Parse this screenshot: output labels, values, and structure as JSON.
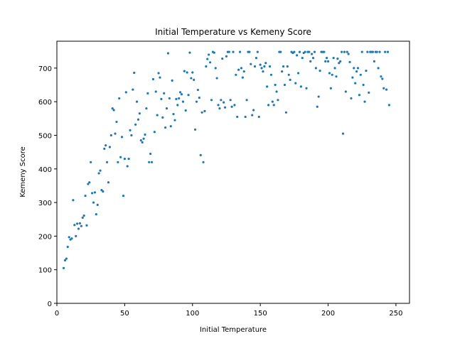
{
  "chart_data": {
    "type": "scatter",
    "title": "Initial Temperature vs Kemeny Score",
    "xlabel": "Initial Temperature",
    "ylabel": "Kemeny Score",
    "xlim": [
      0,
      260
    ],
    "ylim": [
      0,
      780
    ],
    "xticks": [
      0,
      50,
      100,
      150,
      200,
      250
    ],
    "yticks": [
      0,
      100,
      200,
      300,
      400,
      500,
      600,
      700
    ],
    "grid": false,
    "legend": "none",
    "marker_color": "#1f77b4",
    "series": [
      {
        "points": [
          [
            5,
            105
          ],
          [
            6,
            128
          ],
          [
            7,
            133
          ],
          [
            8,
            168
          ],
          [
            9,
            197
          ],
          [
            10,
            190
          ],
          [
            11,
            193
          ],
          [
            12,
            307
          ],
          [
            13,
            233
          ],
          [
            14,
            200
          ],
          [
            15,
            237
          ],
          [
            16,
            222
          ],
          [
            17,
            238
          ],
          [
            18,
            230
          ],
          [
            19,
            255
          ],
          [
            20,
            261
          ],
          [
            21,
            320
          ],
          [
            22,
            232
          ],
          [
            23,
            355
          ],
          [
            24,
            360
          ],
          [
            25,
            420
          ],
          [
            26,
            328
          ],
          [
            27,
            300
          ],
          [
            28,
            330
          ],
          [
            29,
            265
          ],
          [
            30,
            293
          ],
          [
            31,
            387
          ],
          [
            32,
            395
          ],
          [
            33,
            337
          ],
          [
            34,
            333
          ],
          [
            35,
            460
          ],
          [
            36,
            470
          ],
          [
            37,
            420
          ],
          [
            38,
            360
          ],
          [
            39,
            465
          ],
          [
            40,
            500
          ],
          [
            41,
            580
          ],
          [
            42,
            575
          ],
          [
            43,
            505
          ],
          [
            44,
            540
          ],
          [
            45,
            420
          ],
          [
            46,
            610
          ],
          [
            47,
            435
          ],
          [
            48,
            495
          ],
          [
            49,
            320
          ],
          [
            50,
            430
          ],
          [
            51,
            628
          ],
          [
            52,
            408
          ],
          [
            53,
            430
          ],
          [
            54,
            515
          ],
          [
            55,
            500
          ],
          [
            56,
            636
          ],
          [
            57,
            686
          ],
          [
            58,
            532
          ],
          [
            59,
            600
          ],
          [
            60,
            547
          ],
          [
            61,
            565
          ],
          [
            62,
            485
          ],
          [
            63,
            479
          ],
          [
            64,
            490
          ],
          [
            65,
            502
          ],
          [
            66,
            580
          ],
          [
            67,
            625
          ],
          [
            68,
            420
          ],
          [
            69,
            445
          ],
          [
            70,
            420
          ],
          [
            71,
            667
          ],
          [
            72,
            510
          ],
          [
            73,
            630
          ],
          [
            74,
            560
          ],
          [
            75,
            685
          ],
          [
            76,
            672
          ],
          [
            77,
            608
          ],
          [
            78,
            553
          ],
          [
            79,
            625
          ],
          [
            80,
            523
          ],
          [
            81,
            580
          ],
          [
            82,
            744
          ],
          [
            83,
            610
          ],
          [
            84,
            527
          ],
          [
            85,
            663
          ],
          [
            86,
            563
          ],
          [
            87,
            545
          ],
          [
            88,
            608
          ],
          [
            89,
            590
          ],
          [
            90,
            610
          ],
          [
            91,
            628
          ],
          [
            92,
            622
          ],
          [
            93,
            600
          ],
          [
            94,
            691
          ],
          [
            95,
            574
          ],
          [
            96,
            687
          ],
          [
            97,
            620
          ],
          [
            98,
            746
          ],
          [
            99,
            670
          ],
          [
            100,
            687
          ],
          [
            101,
            665
          ],
          [
            102,
            517
          ],
          [
            103,
            600
          ],
          [
            104,
            635
          ],
          [
            105,
            612
          ],
          [
            106,
            441
          ],
          [
            107,
            568
          ],
          [
            108,
            420
          ],
          [
            109,
            572
          ],
          [
            110,
            705
          ],
          [
            111,
            727
          ],
          [
            112,
            740
          ],
          [
            113,
            717
          ],
          [
            114,
            605
          ],
          [
            115,
            748
          ],
          [
            116,
            746
          ],
          [
            117,
            700
          ],
          [
            118,
            670
          ],
          [
            119,
            590
          ],
          [
            120,
            580
          ],
          [
            121,
            605
          ],
          [
            122,
            728
          ],
          [
            123,
            598
          ],
          [
            124,
            583
          ],
          [
            125,
            735
          ],
          [
            126,
            748
          ],
          [
            127,
            748
          ],
          [
            128,
            605
          ],
          [
            129,
            585
          ],
          [
            130,
            748
          ],
          [
            131,
            590
          ],
          [
            132,
            680
          ],
          [
            133,
            555
          ],
          [
            134,
            695
          ],
          [
            135,
            748
          ],
          [
            136,
            700
          ],
          [
            137,
            672
          ],
          [
            138,
            690
          ],
          [
            139,
            555
          ],
          [
            140,
            605
          ],
          [
            141,
            748
          ],
          [
            142,
            748
          ],
          [
            143,
            712
          ],
          [
            144,
            560
          ],
          [
            145,
            575
          ],
          [
            146,
            705
          ],
          [
            147,
            730
          ],
          [
            148,
            748
          ],
          [
            149,
            555
          ],
          [
            150,
            710
          ],
          [
            151,
            700
          ],
          [
            152,
            690
          ],
          [
            153,
            705
          ],
          [
            154,
            715
          ],
          [
            155,
            645
          ],
          [
            156,
            590
          ],
          [
            157,
            705
          ],
          [
            158,
            680
          ],
          [
            159,
            600
          ],
          [
            160,
            590
          ],
          [
            161,
            650
          ],
          [
            162,
            630
          ],
          [
            163,
            605
          ],
          [
            164,
            748
          ],
          [
            165,
            748
          ],
          [
            166,
            690
          ],
          [
            167,
            705
          ],
          [
            168,
            650
          ],
          [
            169,
            568
          ],
          [
            170,
            705
          ],
          [
            171,
            680
          ],
          [
            172,
            665
          ],
          [
            173,
            748
          ],
          [
            174,
            745
          ],
          [
            175,
            748
          ],
          [
            176,
            655
          ],
          [
            177,
            738
          ],
          [
            178,
            685
          ],
          [
            179,
            748
          ],
          [
            180,
            645
          ],
          [
            181,
            730
          ],
          [
            182,
            745
          ],
          [
            183,
            748
          ],
          [
            184,
            640
          ],
          [
            185,
            748
          ],
          [
            186,
            748
          ],
          [
            187,
            720
          ],
          [
            188,
            742
          ],
          [
            189,
            730
          ],
          [
            190,
            748
          ],
          [
            191,
            700
          ],
          [
            192,
            585
          ],
          [
            193,
            615
          ],
          [
            194,
            692
          ],
          [
            195,
            748
          ],
          [
            196,
            748
          ],
          [
            197,
            748
          ],
          [
            198,
            720
          ],
          [
            199,
            730
          ],
          [
            200,
            720
          ],
          [
            201,
            685
          ],
          [
            202,
            640
          ],
          [
            203,
            680
          ],
          [
            204,
            730
          ],
          [
            205,
            700
          ],
          [
            206,
            675
          ],
          [
            207,
            728
          ],
          [
            208,
            715
          ],
          [
            209,
            720
          ],
          [
            210,
            748
          ],
          [
            211,
            505
          ],
          [
            212,
            748
          ],
          [
            213,
            630
          ],
          [
            214,
            748
          ],
          [
            215,
            742
          ],
          [
            216,
            718
          ],
          [
            217,
            610
          ],
          [
            218,
            672
          ],
          [
            219,
            700
          ],
          [
            220,
            655
          ],
          [
            221,
            690
          ],
          [
            222,
            700
          ],
          [
            223,
            620
          ],
          [
            224,
            680
          ],
          [
            225,
            748
          ],
          [
            226,
            650
          ],
          [
            227,
            600
          ],
          [
            228,
            692
          ],
          [
            229,
            748
          ],
          [
            230,
            627
          ],
          [
            231,
            748
          ],
          [
            232,
            748
          ],
          [
            233,
            748
          ],
          [
            234,
            720
          ],
          [
            235,
            748
          ],
          [
            236,
            748
          ],
          [
            237,
            700
          ],
          [
            238,
            748
          ],
          [
            239,
            675
          ],
          [
            240,
            668
          ],
          [
            241,
            640
          ],
          [
            242,
            748
          ],
          [
            243,
            636
          ],
          [
            244,
            748
          ],
          [
            245,
            590
          ]
        ]
      }
    ]
  }
}
